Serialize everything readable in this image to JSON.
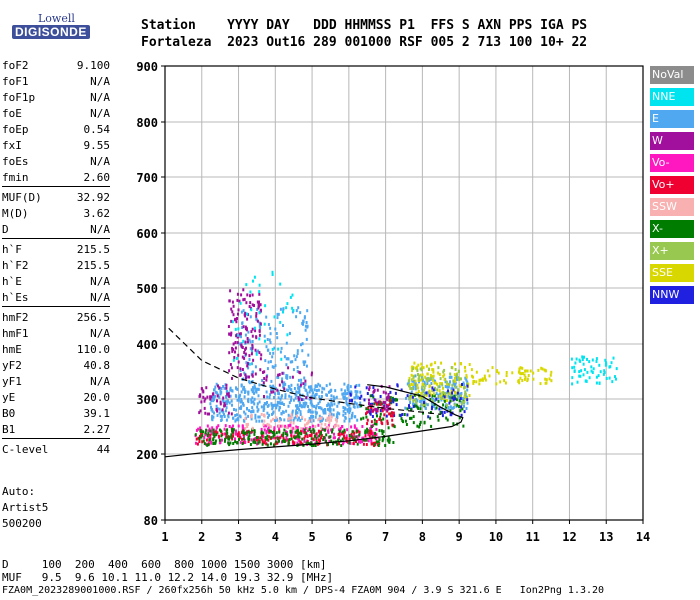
{
  "logo": {
    "line1": "Lowell",
    "line2": "DIGISONDE"
  },
  "header": {
    "line1": "Station    YYYY DAY   DDD HHMMSS P1  FFS S AXN PPS IGA PS",
    "line2": "Fortaleza  2023 Out16 289 001000 RSF 005 2 713 100 10+ 22"
  },
  "params": [
    {
      "k": "foF2",
      "v": "9.100"
    },
    {
      "k": "foF1",
      "v": "N/A"
    },
    {
      "k": "foF1p",
      "v": "N/A"
    },
    {
      "k": "foE",
      "v": "N/A"
    },
    {
      "k": "foEp",
      "v": "0.54"
    },
    {
      "k": "fxI",
      "v": "9.55"
    },
    {
      "k": "foEs",
      "v": "N/A"
    },
    {
      "k": "fmin",
      "v": "2.60"
    },
    {
      "k": "MUF(D)",
      "v": "32.92"
    },
    {
      "k": "M(D)",
      "v": "3.62"
    },
    {
      "k": "D",
      "v": "N/A"
    },
    {
      "k": "h`F",
      "v": "215.5"
    },
    {
      "k": "h`F2",
      "v": "215.5"
    },
    {
      "k": "h`E",
      "v": "N/A"
    },
    {
      "k": "h`Es",
      "v": "N/A"
    },
    {
      "k": "hmF2",
      "v": "256.5"
    },
    {
      "k": "hmF1",
      "v": "N/A"
    },
    {
      "k": "hmE",
      "v": "110.0"
    },
    {
      "k": "yF2",
      "v": "40.8"
    },
    {
      "k": "yF1",
      "v": "N/A"
    },
    {
      "k": "yE",
      "v": "20.0"
    },
    {
      "k": "B0",
      "v": "39.1"
    },
    {
      "k": "B1",
      "v": "2.27"
    },
    {
      "k": "C-level",
      "v": "44"
    }
  ],
  "auto": [
    "Auto:",
    "Artist5",
    "500200"
  ],
  "legend": [
    {
      "label": "NoVal",
      "color": "#8c8c8c"
    },
    {
      "label": "NNE",
      "color": "#00e4f0"
    },
    {
      "label": "E",
      "color": "#50a8f0"
    },
    {
      "label": "W",
      "color": "#a0109c"
    },
    {
      "label": "Vo-",
      "color": "#ff18c0"
    },
    {
      "label": "Vo+",
      "color": "#f00030"
    },
    {
      "label": "SSW",
      "color": "#f8b0b0"
    },
    {
      "label": "X-",
      "color": "#007c00"
    },
    {
      "label": "X+",
      "color": "#98c850"
    },
    {
      "label": "SSE",
      "color": "#d8d800"
    },
    {
      "label": "NNW",
      "color": "#2020e0"
    }
  ],
  "footer": {
    "line1": "D     100  200  400  600  800 1000 1500 3000 [km]",
    "line2": "MUF   9.5  9.6 10.1 11.0 12.2 14.0 19.3 32.9 [MHz]",
    "line3": "FZA0M_2023289001000.RSF / 260fx256h 50 kHz 5.0 km / DPS-4 FZA0M 904 / 3.9 S 321.6 E   Ion2Png 1.3.20"
  },
  "chart_data": {
    "type": "scatter",
    "xlim": [
      1,
      14
    ],
    "ylim": [
      80,
      900
    ],
    "xticks": [
      "1",
      "2",
      "3",
      "4",
      "5",
      "6",
      "7",
      "8",
      "9",
      "10",
      "11",
      "12",
      "13",
      "14"
    ],
    "yticks": [
      "80",
      "200",
      "300",
      "400",
      "500",
      "600",
      "700",
      "800",
      "900"
    ],
    "grid": true,
    "clusters": [
      {
        "label": "E",
        "xmin": 2.2,
        "xmax": 6.3,
        "ymin": 262,
        "ymax": 330,
        "n": 520
      },
      {
        "label": "E",
        "xmin": 3.0,
        "xmax": 4.9,
        "ymin": 330,
        "ymax": 470,
        "n": 150
      },
      {
        "label": "E",
        "xmin": 7.5,
        "xmax": 9.2,
        "ymin": 285,
        "ymax": 345,
        "n": 160
      },
      {
        "label": "W",
        "xmin": 2.7,
        "xmax": 3.6,
        "ymin": 340,
        "ymax": 500,
        "n": 130
      },
      {
        "label": "W",
        "xmin": 1.9,
        "xmax": 2.8,
        "ymin": 270,
        "ymax": 330,
        "n": 45
      },
      {
        "label": "W",
        "xmin": 3.5,
        "xmax": 5.0,
        "ymin": 300,
        "ymax": 360,
        "n": 30
      },
      {
        "label": "Vo-",
        "xmin": 1.8,
        "xmax": 6.8,
        "ymin": 220,
        "ymax": 255,
        "n": 220
      },
      {
        "label": "Vo+",
        "xmin": 1.8,
        "xmax": 6.8,
        "ymin": 218,
        "ymax": 245,
        "n": 160
      },
      {
        "label": "X-",
        "xmin": 1.8,
        "xmax": 7.2,
        "ymin": 218,
        "ymax": 248,
        "n": 220
      },
      {
        "label": "X-",
        "xmin": 6.3,
        "xmax": 9.1,
        "ymin": 250,
        "ymax": 310,
        "n": 110
      },
      {
        "label": "SSW",
        "xmin": 3.0,
        "xmax": 5.7,
        "ymin": 248,
        "ymax": 275,
        "n": 70
      },
      {
        "label": "SSE",
        "xmin": 7.6,
        "xmax": 9.3,
        "ymin": 300,
        "ymax": 370,
        "n": 110
      },
      {
        "label": "SSE",
        "xmin": 9.3,
        "xmax": 11.5,
        "ymin": 330,
        "ymax": 360,
        "n": 70
      },
      {
        "label": "X+",
        "xmin": 7.6,
        "xmax": 9.2,
        "ymin": 290,
        "ymax": 360,
        "n": 90
      },
      {
        "label": "NNW",
        "xmin": 6.0,
        "xmax": 9.2,
        "ymin": 270,
        "ymax": 330,
        "n": 80
      },
      {
        "label": "NNE",
        "xmin": 12.0,
        "xmax": 13.3,
        "ymin": 330,
        "ymax": 380,
        "n": 60
      },
      {
        "label": "NNE",
        "xmin": 2.8,
        "xmax": 4.5,
        "ymin": 360,
        "ymax": 540,
        "n": 40
      },
      {
        "label": "Vo+",
        "xmin": 6.4,
        "xmax": 7.2,
        "ymin": 255,
        "ymax": 300,
        "n": 40
      },
      {
        "label": "W",
        "xmin": 6.5,
        "xmax": 7.1,
        "ymin": 280,
        "ymax": 330,
        "n": 30
      }
    ],
    "curves": {
      "dashed": {
        "x": [
          1.1,
          2.0,
          3.0,
          4.0,
          5.0,
          6.0,
          7.0,
          8.0,
          8.5
        ],
        "y": [
          428,
          370,
          338,
          318,
          302,
          292,
          283,
          276,
          272
        ]
      },
      "profile": {
        "x": [
          1.0,
          2.0,
          3.0,
          4.0,
          5.0,
          6.0,
          7.0,
          8.0,
          8.8,
          9.05,
          9.1,
          8.9,
          8.5,
          8.0,
          7.0,
          6.5
        ],
        "y": [
          195,
          202,
          208,
          213,
          218,
          224,
          232,
          242,
          250,
          258,
          266,
          271,
          285,
          305,
          322,
          326
        ]
      }
    }
  }
}
